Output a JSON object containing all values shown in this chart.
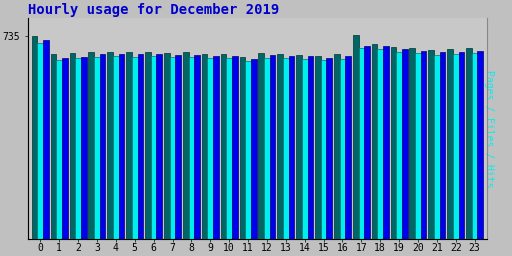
{
  "title": "Hourly usage for December 2019",
  "hours": [
    0,
    1,
    2,
    3,
    4,
    5,
    6,
    7,
    8,
    9,
    10,
    11,
    12,
    13,
    14,
    15,
    16,
    17,
    18,
    19,
    20,
    21,
    22,
    23
  ],
  "pages": [
    720,
    655,
    660,
    668,
    670,
    668,
    671,
    666,
    666,
    664,
    664,
    653,
    666,
    663,
    661,
    656,
    661,
    698,
    698,
    686,
    681,
    676,
    676,
    681
  ],
  "files": [
    710,
    648,
    654,
    659,
    663,
    660,
    664,
    658,
    659,
    656,
    656,
    644,
    656,
    655,
    653,
    647,
    652,
    690,
    688,
    678,
    673,
    667,
    668,
    673
  ],
  "hits": [
    735,
    668,
    672,
    676,
    678,
    675,
    677,
    673,
    675,
    671,
    670,
    660,
    672,
    670,
    667,
    663,
    668,
    738,
    706,
    694,
    690,
    685,
    686,
    691
  ],
  "ymin": 0,
  "ymax": 800,
  "ytick": 735,
  "bar_width": 0.3,
  "color_pages": "#0000ee",
  "color_files": "#00eeee",
  "color_hits": "#006666",
  "color_pages_edge": "#000077",
  "color_files_edge": "#007777",
  "color_hits_edge": "#003333",
  "bg_color": "#c0c0c0",
  "plot_bg": "#c8c8c8",
  "title_color": "#0000cc",
  "axis_label": "Pages / Files / Hits"
}
